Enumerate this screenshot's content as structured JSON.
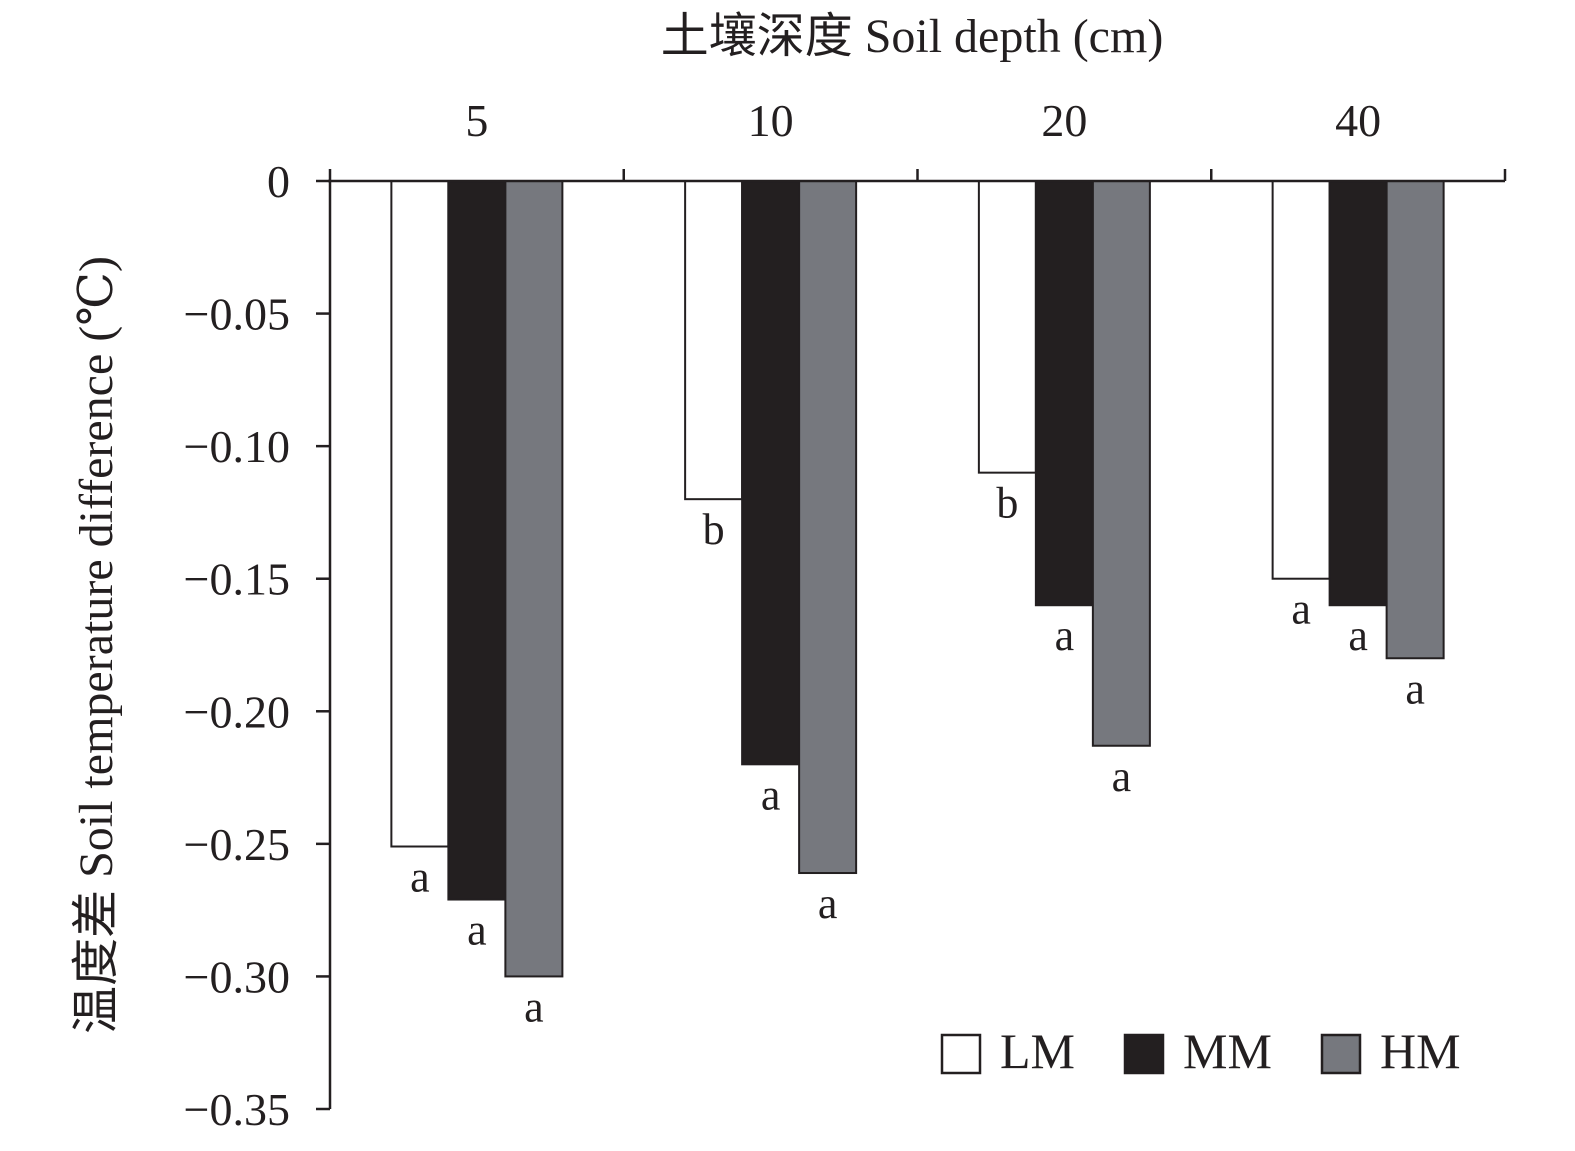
{
  "chart_data": {
    "type": "bar",
    "orientation": "vertical-negative",
    "x_axis_position": "top",
    "xlabel": "土壤深度 Soil depth (cm)",
    "ylabel": "温度差 Soil temperature difference (℃)",
    "categories": [
      "5",
      "10",
      "20",
      "40"
    ],
    "ylim": [
      -0.35,
      0
    ],
    "yticks": [
      0,
      -0.05,
      -0.1,
      -0.15,
      -0.2,
      -0.25,
      -0.3,
      -0.35
    ],
    "ytick_labels": [
      "0",
      "−0.05",
      "−0.10",
      "−0.15",
      "−0.20",
      "−0.25",
      "−0.30",
      "−0.35"
    ],
    "grid": false,
    "legend_position": "bottom-right",
    "series": [
      {
        "name": "LM",
        "color": "#ffffff",
        "values": [
          -0.251,
          -0.12,
          -0.11,
          -0.15
        ],
        "labels": [
          "a",
          "b",
          "b",
          "a"
        ]
      },
      {
        "name": "MM",
        "color": "#231f20",
        "values": [
          -0.271,
          -0.22,
          -0.16,
          -0.16
        ],
        "labels": [
          "a",
          "a",
          "a",
          "a"
        ]
      },
      {
        "name": "HM",
        "color": "#76787e",
        "values": [
          -0.3,
          -0.261,
          -0.213,
          -0.18
        ],
        "labels": [
          "a",
          "a",
          "a",
          "a"
        ]
      }
    ]
  }
}
